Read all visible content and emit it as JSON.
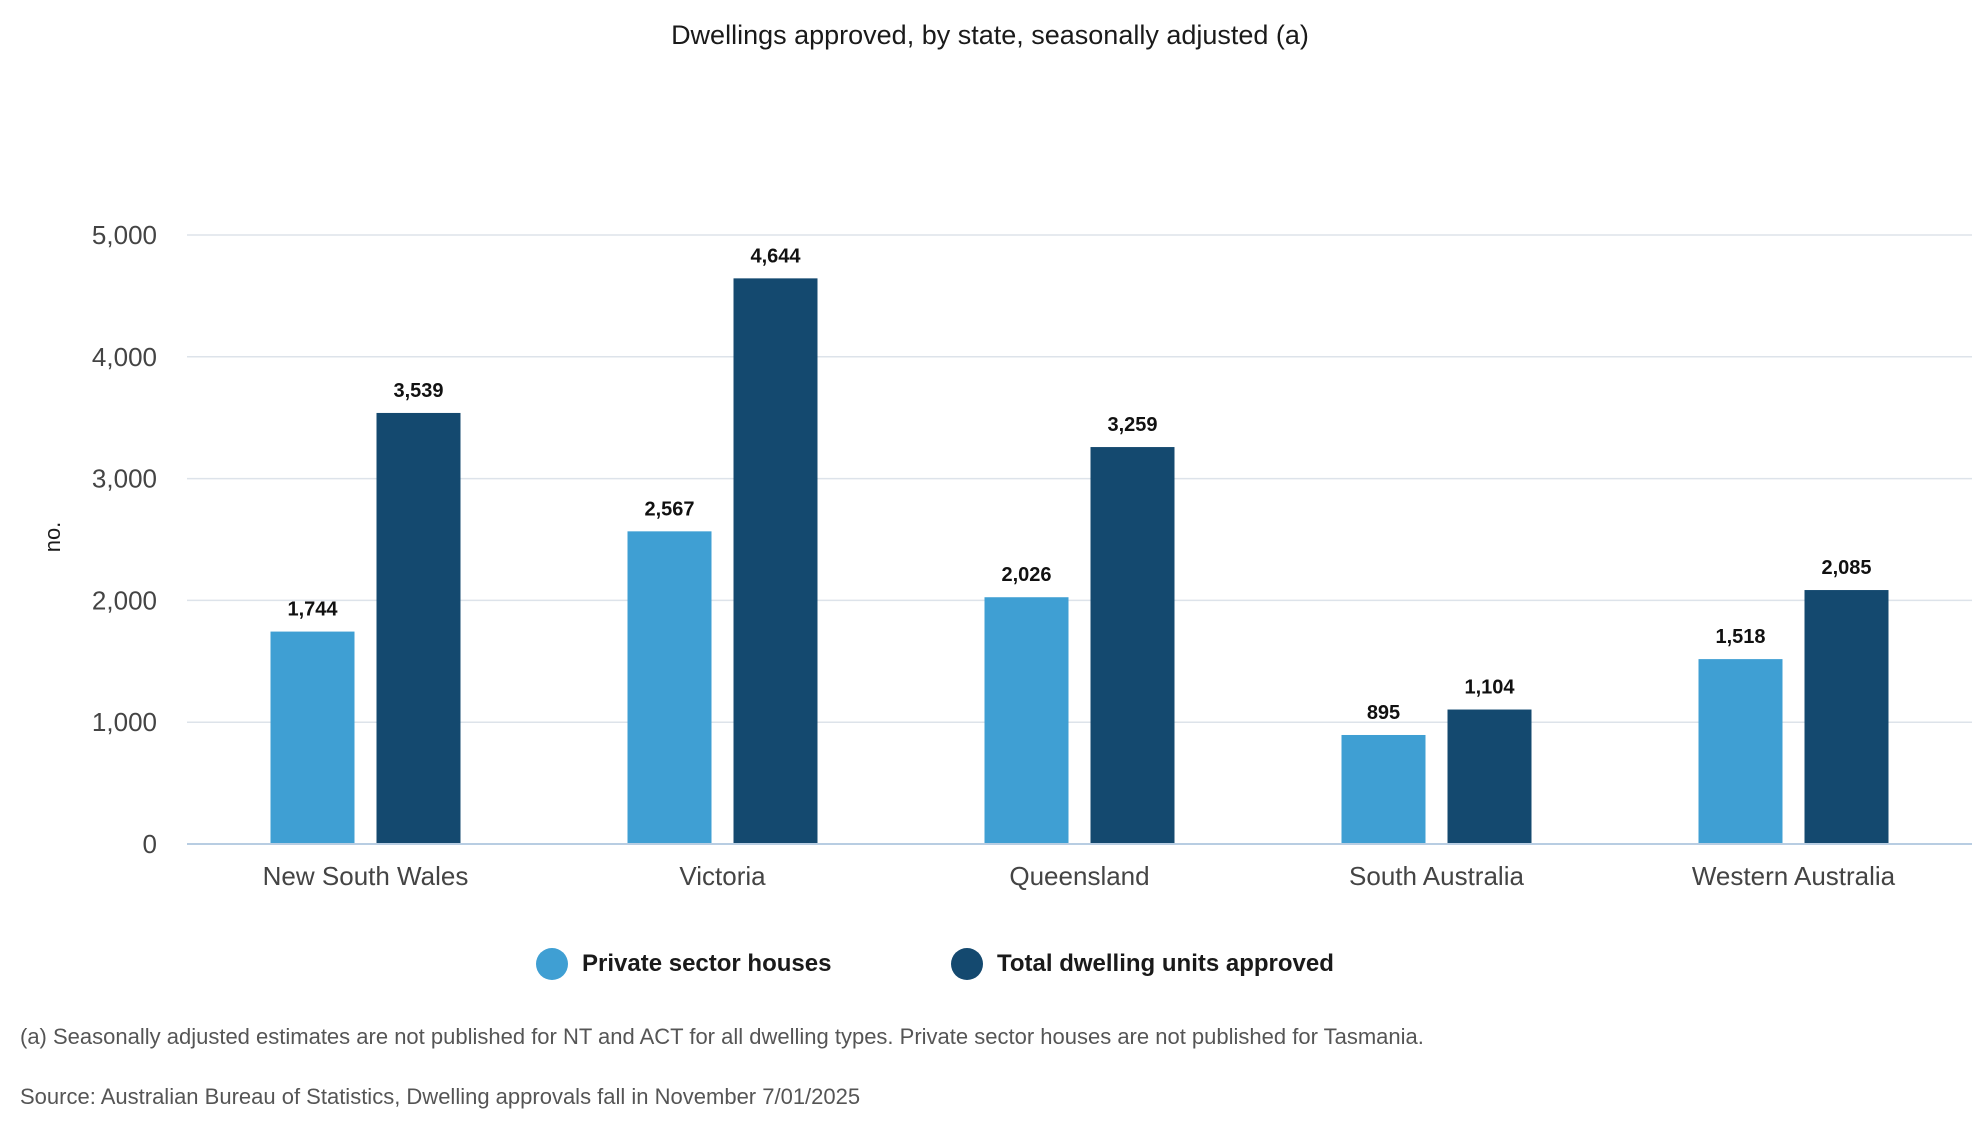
{
  "chart_data": {
    "type": "bar",
    "title": "Dwellings approved, by state, seasonally adjusted (a)",
    "xlabel": "",
    "ylabel": "no.",
    "ylim": [
      0,
      5000
    ],
    "yticks": [
      0,
      1000,
      2000,
      3000,
      4000,
      5000
    ],
    "ytick_labels": [
      "0",
      "1,000",
      "2,000",
      "3,000",
      "4,000",
      "5,000"
    ],
    "categories": [
      "New South Wales",
      "Victoria",
      "Queensland",
      "South Australia",
      "Western Australia"
    ],
    "series": [
      {
        "name": "Private sector houses",
        "color": "#3f9fd3",
        "values": [
          1744,
          2567,
          2026,
          895,
          1518
        ],
        "labels": [
          "1,744",
          "2,567",
          "2,026",
          "895",
          "1,518"
        ]
      },
      {
        "name": "Total dwelling units approved",
        "color": "#14496f",
        "values": [
          3539,
          4644,
          3259,
          1104,
          2085
        ],
        "labels": [
          "3,539",
          "4,644",
          "3,259",
          "1,104",
          "2,085"
        ]
      }
    ],
    "grid": true,
    "legend_position": "bottom-center"
  },
  "footnote": "(a) Seasonally adjusted estimates are not published for NT and ACT for all dwelling types. Private sector houses are not published for Tasmania.",
  "source": "Source: Australian Bureau of Statistics, Dwelling approvals fall in November 7/01/2025"
}
